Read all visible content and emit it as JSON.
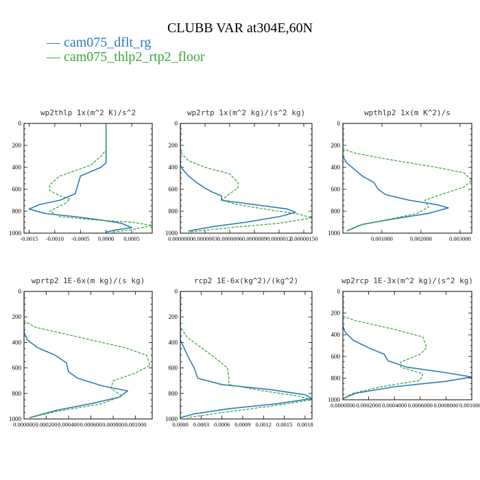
{
  "title": "CLUBB VAR at304E,60N",
  "colors": {
    "series_0": "#2a7ab5",
    "series_1": "#3aa63a"
  },
  "legend": [
    {
      "label": "— cam075_dflt_rg",
      "color": "#2a7ab5"
    },
    {
      "label": "— cam075_thlp2_rtp2_floor",
      "color": "#3aa63a"
    }
  ],
  "chart_data": [
    {
      "type": "line",
      "title": "wp2thlp  1x(m^2 K)/s^2",
      "yticks": [
        "0",
        "200",
        "400",
        "600",
        "800",
        "1000"
      ],
      "ylim": [
        1000,
        0
      ],
      "xlim": [
        -0.0016,
        0.0009
      ],
      "xticks": [
        {
          "v": -0.0015,
          "label": "-0.0015"
        },
        {
          "v": -0.001,
          "label": "-0.0010"
        },
        {
          "v": -0.0005,
          "label": "-0.0005"
        },
        {
          "v": 0,
          "label": "0.0000"
        },
        {
          "v": 0.0005,
          "label": "0.0005"
        }
      ],
      "series": [
        {
          "name": "cam075_dflt_rg",
          "points": [
            [
              0,
              0
            ],
            [
              0,
              300
            ],
            [
              0,
              360
            ],
            [
              -0.0001,
              400
            ],
            [
              -0.0003,
              440
            ],
            [
              -0.0005,
              480
            ],
            [
              -0.00055,
              560
            ],
            [
              -0.0006,
              640
            ],
            [
              -0.0009,
              700
            ],
            [
              -0.0013,
              740
            ],
            [
              -0.0015,
              780
            ],
            [
              -0.0012,
              820
            ],
            [
              -0.0006,
              850
            ],
            [
              -0.0001,
              880
            ],
            [
              0.0003,
              910
            ],
            [
              0.0005,
              950
            ],
            [
              0.0002,
              970
            ],
            [
              0,
              990
            ]
          ]
        },
        {
          "name": "cam075_thlp2_rtp2_floor",
          "points": [
            [
              0,
              0
            ],
            [
              0,
              240
            ],
            [
              -0.0001,
              300
            ],
            [
              -0.0003,
              380
            ],
            [
              -0.0006,
              430
            ],
            [
              -0.0009,
              480
            ],
            [
              -0.0011,
              560
            ],
            [
              -0.0011,
              610
            ],
            [
              -0.0009,
              660
            ],
            [
              -0.0007,
              690
            ],
            [
              -0.0008,
              730
            ],
            [
              -0.0011,
              800
            ],
            [
              -0.0009,
              850
            ],
            [
              -0.0002,
              880
            ],
            [
              0.0005,
              900
            ],
            [
              0.0009,
              930
            ],
            [
              0.0005,
              970
            ],
            [
              0.0001,
              990
            ]
          ]
        }
      ]
    },
    {
      "type": "line",
      "title": "wp2rtp  1x(m^2 kg)/(s^2 kg)",
      "yticks": [
        "0",
        "200",
        "400",
        "600",
        "800",
        "1000"
      ],
      "ylim": [
        1000,
        0
      ],
      "xlim": [
        0,
        1.6e-06
      ],
      "xticks": [
        {
          "v": 0,
          "label": "0.0000000"
        },
        {
          "v": 3e-07,
          "label": "0.0000003"
        },
        {
          "v": 6e-07,
          "label": "0.0000006"
        },
        {
          "v": 9e-07,
          "label": "0.0000009"
        },
        {
          "v": 1.2e-06,
          "label": "0.0000012"
        },
        {
          "v": 1.5e-06,
          "label": "0.00000150"
        }
      ],
      "series": [
        {
          "name": "cam075_dflt_rg",
          "points": [
            [
              0,
              0
            ],
            [
              0,
              380
            ],
            [
              3e-08,
              420
            ],
            [
              1e-07,
              480
            ],
            [
              2e-07,
              540
            ],
            [
              3e-07,
              590
            ],
            [
              4e-07,
              630
            ],
            [
              5e-07,
              660
            ],
            [
              5e-07,
              700
            ],
            [
              9e-07,
              740
            ],
            [
              1.3e-06,
              780
            ],
            [
              1.4e-06,
              810
            ],
            [
              1.2e-06,
              850
            ],
            [
              8e-07,
              900
            ],
            [
              4e-07,
              940
            ],
            [
              1e-07,
              980
            ]
          ]
        },
        {
          "name": "cam075_thlp2_rtp2_floor",
          "points": [
            [
              0,
              0
            ],
            [
              0,
              220
            ],
            [
              2e-08,
              280
            ],
            [
              1e-07,
              340
            ],
            [
              3e-07,
              400
            ],
            [
              6e-07,
              460
            ],
            [
              7e-07,
              540
            ],
            [
              7e-07,
              590
            ],
            [
              6e-07,
              640
            ],
            [
              5e-07,
              700
            ],
            [
              7e-07,
              740
            ],
            [
              1.1e-06,
              790
            ],
            [
              1.4e-06,
              820
            ],
            [
              1.6e-06,
              860
            ],
            [
              1.2e-06,
              910
            ],
            [
              6e-07,
              950
            ],
            [
              1e-07,
              990
            ]
          ]
        }
      ]
    },
    {
      "type": "line",
      "title": "wpthlp2  1x(m K^2)/s",
      "yticks": [
        "0",
        "200",
        "400",
        "600",
        "800",
        "1000"
      ],
      "ylim": [
        1000,
        0
      ],
      "xlim": [
        0,
        0.0033
      ],
      "xticks": [
        {
          "v": 0.001,
          "label": "0.001000"
        },
        {
          "v": 0.002,
          "label": "0.002000"
        },
        {
          "v": 0.003,
          "label": "0.003000"
        }
      ],
      "series": [
        {
          "name": "cam075_dflt_rg",
          "points": [
            [
              0,
              0
            ],
            [
              0,
              300
            ],
            [
              0.0001,
              360
            ],
            [
              0.0003,
              420
            ],
            [
              0.0005,
              480
            ],
            [
              0.0008,
              540
            ],
            [
              0.0009,
              600
            ],
            [
              0.0011,
              650
            ],
            [
              0.0017,
              700
            ],
            [
              0.0024,
              740
            ],
            [
              0.0027,
              770
            ],
            [
              0.0022,
              820
            ],
            [
              0.0013,
              870
            ],
            [
              0.0005,
              920
            ],
            [
              0.0001,
              980
            ]
          ]
        },
        {
          "name": "cam075_thlp2_rtp2_floor",
          "points": [
            [
              0,
              0
            ],
            [
              0,
              230
            ],
            [
              0.0003,
              270
            ],
            [
              0.0012,
              330
            ],
            [
              0.0024,
              400
            ],
            [
              0.0031,
              450
            ],
            [
              0.0033,
              520
            ],
            [
              0.0031,
              580
            ],
            [
              0.0025,
              650
            ],
            [
              0.0021,
              700
            ],
            [
              0.0022,
              760
            ],
            [
              0.0019,
              820
            ],
            [
              0.0011,
              880
            ],
            [
              0.0004,
              930
            ],
            [
              0.0001,
              980
            ]
          ]
        }
      ]
    },
    {
      "type": "line",
      "title": "wprtp2  1E-6x(m kg)/(s kg)",
      "yticks": [
        "0",
        "200",
        "400",
        "600",
        "800",
        "1000"
      ],
      "ylim": [
        1000,
        0
      ],
      "xlim": [
        0,
        0.00115
      ],
      "xticks": [
        {
          "v": 0,
          "label": "0.000000"
        },
        {
          "v": 0.0002,
          "label": "0.000200"
        },
        {
          "v": 0.0004,
          "label": "0.000400"
        },
        {
          "v": 0.0006,
          "label": "0.000600"
        },
        {
          "v": 0.0008,
          "label": "0.000800"
        },
        {
          "v": 0.001,
          "label": "0.001000"
        }
      ],
      "series": [
        {
          "name": "cam075_dflt_rg",
          "points": [
            [
              0,
              0
            ],
            [
              0,
              320
            ],
            [
              3e-05,
              380
            ],
            [
              0.00012,
              440
            ],
            [
              0.00028,
              500
            ],
            [
              0.00038,
              560
            ],
            [
              0.0004,
              630
            ],
            [
              0.00048,
              680
            ],
            [
              0.0007,
              740
            ],
            [
              0.00093,
              780
            ],
            [
              0.00085,
              830
            ],
            [
              0.0006,
              880
            ],
            [
              0.0003,
              930
            ],
            [
              5e-05,
              990
            ]
          ]
        },
        {
          "name": "cam075_thlp2_rtp2_floor",
          "points": [
            [
              0,
              0
            ],
            [
              0,
              230
            ],
            [
              0.0001,
              280
            ],
            [
              0.0005,
              360
            ],
            [
              0.0009,
              440
            ],
            [
              0.0011,
              500
            ],
            [
              0.00113,
              580
            ],
            [
              0.001,
              640
            ],
            [
              0.0008,
              700
            ],
            [
              0.00078,
              760
            ],
            [
              0.00088,
              820
            ],
            [
              0.0007,
              880
            ],
            [
              0.0003,
              940
            ],
            [
              5e-05,
              990
            ]
          ]
        }
      ]
    },
    {
      "type": "line",
      "title": "rcp2  1E-6x(kg^2)/(kg^2)",
      "yticks": [
        "0",
        "200",
        "400",
        "600",
        "800",
        "1000"
      ],
      "ylim": [
        1000,
        0
      ],
      "xlim": [
        0,
        0.0019
      ],
      "xticks": [
        {
          "v": 0,
          "label": "0.0000"
        },
        {
          "v": 0.0003,
          "label": "0.0003"
        },
        {
          "v": 0.0006,
          "label": "0.0006"
        },
        {
          "v": 0.0009,
          "label": "0.0009"
        },
        {
          "v": 0.0012,
          "label": "0.0012"
        },
        {
          "v": 0.0015,
          "label": "0.0015"
        },
        {
          "v": 0.0018,
          "label": "0.0018"
        }
      ],
      "series": [
        {
          "name": "cam075_dflt_rg",
          "points": [
            [
              0,
              0
            ],
            [
              0,
              380
            ],
            [
              5e-05,
              440
            ],
            [
              0.00012,
              520
            ],
            [
              0.0002,
              600
            ],
            [
              0.00025,
              680
            ],
            [
              0.0006,
              730
            ],
            [
              0.0013,
              770
            ],
            [
              0.0018,
              810
            ],
            [
              0.0019,
              840
            ],
            [
              0.0014,
              880
            ],
            [
              0.0007,
              920
            ],
            [
              0.0002,
              960
            ],
            [
              0,
              990
            ]
          ]
        },
        {
          "name": "cam075_thlp2_rtp2_floor",
          "points": [
            [
              0,
              0
            ],
            [
              0,
              280
            ],
            [
              0.0001,
              360
            ],
            [
              0.0003,
              440
            ],
            [
              0.0005,
              520
            ],
            [
              0.00068,
              600
            ],
            [
              0.0007,
              680
            ],
            [
              0.0007,
              730
            ],
            [
              0.0012,
              780
            ],
            [
              0.0017,
              820
            ],
            [
              0.0019,
              850
            ],
            [
              0.0013,
              900
            ],
            [
              0.0006,
              950
            ],
            [
              0.0001,
              990
            ]
          ]
        }
      ]
    },
    {
      "type": "line",
      "title": "wp2rcp  1E-3x(m^2 kg)/(s^2 kg)",
      "yticks": [
        "0",
        "200",
        "400",
        "600",
        "800",
        "1000"
      ],
      "ylim": [
        1000,
        0
      ],
      "xlim": [
        0,
        0.001
      ],
      "xticks": [
        {
          "v": 0,
          "label": "0.0000000"
        },
        {
          "v": 0.0002,
          "label": "0.0002000"
        },
        {
          "v": 0.0004,
          "label": "0.0004000"
        },
        {
          "v": 0.0006,
          "label": "0.0006000"
        },
        {
          "v": 0.0008,
          "label": "0.0008000"
        },
        {
          "v": 0.001,
          "label": "0.0010000"
        }
      ],
      "series": [
        {
          "name": "cam075_dflt_rg",
          "points": [
            [
              0,
              0
            ],
            [
              0,
              320
            ],
            [
              2e-05,
              380
            ],
            [
              8e-05,
              450
            ],
            [
              0.0002,
              520
            ],
            [
              0.00032,
              580
            ],
            [
              0.00035,
              640
            ],
            [
              0.0005,
              700
            ],
            [
              0.0008,
              750
            ],
            [
              0.001,
              790
            ],
            [
              0.0008,
              830
            ],
            [
              0.0004,
              880
            ],
            [
              0.0001,
              940
            ],
            [
              0,
              990
            ]
          ]
        },
        {
          "name": "cam075_thlp2_rtp2_floor",
          "points": [
            [
              0,
              0
            ],
            [
              0,
              230
            ],
            [
              0.0001,
              270
            ],
            [
              0.0004,
              350
            ],
            [
              0.00062,
              420
            ],
            [
              0.00065,
              520
            ],
            [
              0.0006,
              580
            ],
            [
              0.00045,
              650
            ],
            [
              0.00045,
              700
            ],
            [
              0.00062,
              760
            ],
            [
              0.0006,
              820
            ],
            [
              0.0003,
              880
            ],
            [
              8e-05,
              940
            ],
            [
              0,
              990
            ]
          ]
        }
      ]
    }
  ]
}
